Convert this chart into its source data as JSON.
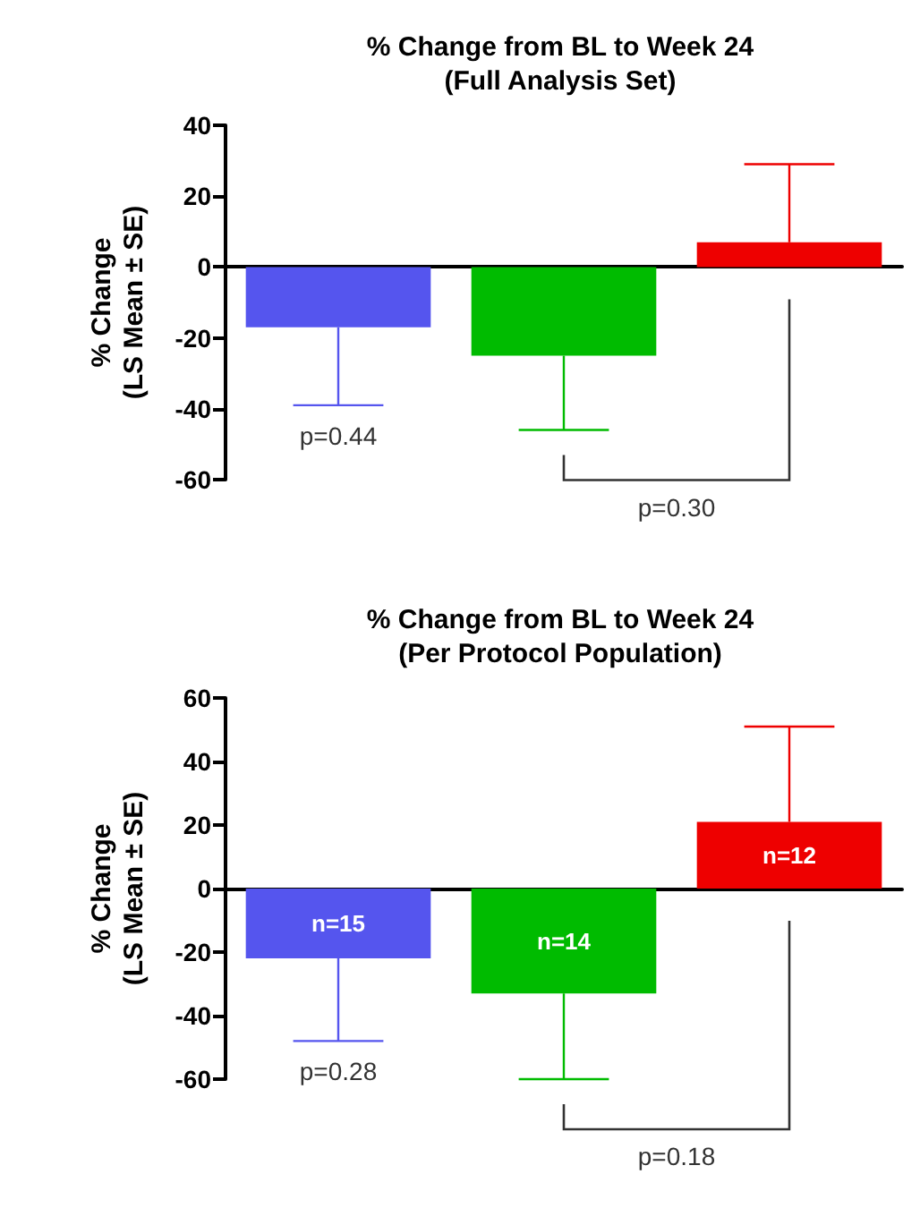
{
  "chart_data": [
    {
      "type": "bar",
      "title": "% Change from BL to Week 24\n(Full Analysis Set)",
      "ylabel": "% Change\n(LS Mean ± SE)",
      "categories": [
        null,
        null,
        null
      ],
      "colors": [
        "#5555ee",
        "#00bb00",
        "#ee0000"
      ],
      "values": [
        -17,
        -25,
        7
      ],
      "errors": [
        [
          -39,
          -17
        ],
        [
          -46,
          -25
        ],
        [
          7,
          29
        ]
      ],
      "ylim": [
        -60,
        40
      ],
      "yticks": [
        -60,
        -40,
        -20,
        0,
        20,
        40
      ],
      "annotations": [
        "p=0.44",
        "p=0.30"
      ]
    },
    {
      "type": "bar",
      "title": "% Change from BL to Week 24\n(Per Protocol Population)",
      "ylabel": "% Change\n(LS Mean ± SE)",
      "categories": [
        null,
        null,
        null
      ],
      "colors": [
        "#5555ee",
        "#00bb00",
        "#ee0000"
      ],
      "values": [
        -22,
        -33,
        21
      ],
      "errors": [
        [
          -48,
          -22
        ],
        [
          -60,
          -33
        ],
        [
          21,
          51
        ]
      ],
      "ylim": [
        -60,
        60
      ],
      "yticks": [
        -60,
        -40,
        -20,
        0,
        20,
        40,
        60
      ],
      "annotations": [
        "p=0.28",
        "p=0.18",
        "n=15",
        "n=14",
        "n=12"
      ]
    }
  ]
}
